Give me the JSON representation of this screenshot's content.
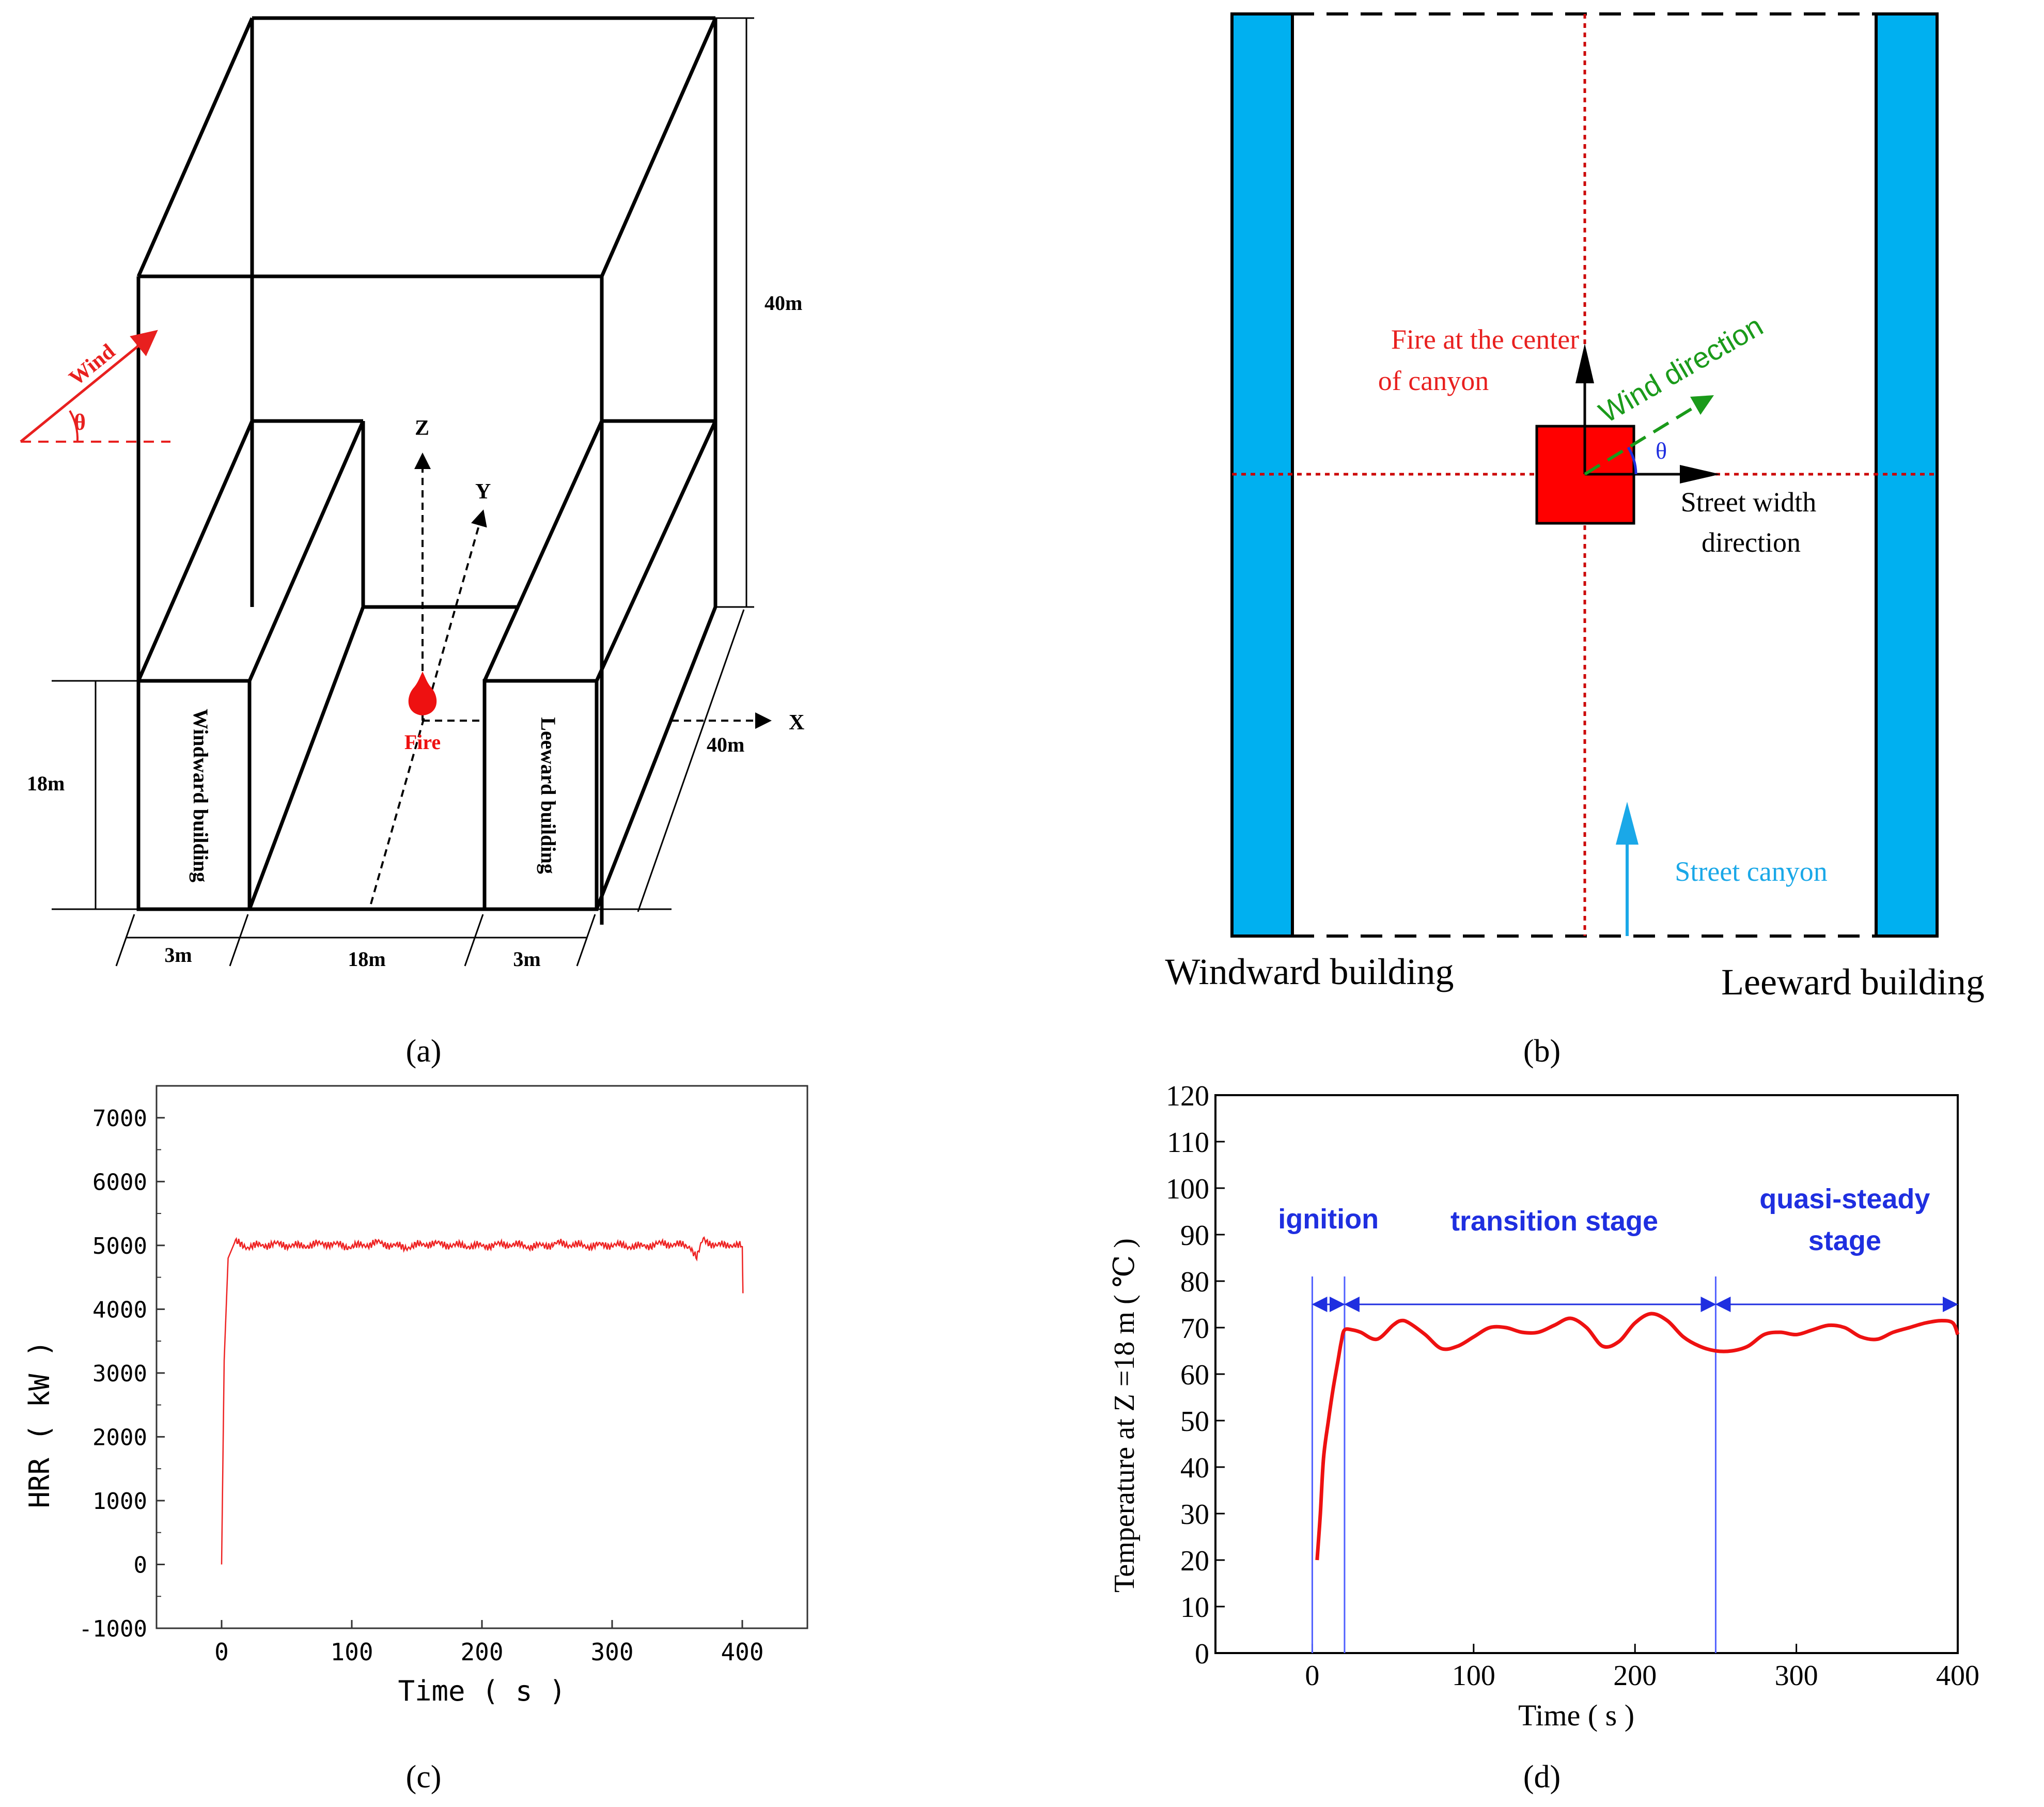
{
  "panel_a": {
    "label": "(a)",
    "wind_label": "Wind",
    "theta": "θ",
    "axis_z": "Z",
    "axis_y": "Y",
    "axis_x": "X",
    "fire_label": "Fire",
    "windward_label": "Windward building",
    "leeward_label": "Leeward building",
    "dim_height_domain": "40m",
    "dim_depth": "40m",
    "dim_building_height": "18m",
    "dim_left_width": "3m",
    "dim_street_width": "18m",
    "dim_right_width": "3m",
    "colors": {
      "wind": "#e8201f",
      "fire": "#ee1111"
    }
  },
  "panel_b": {
    "label": "(b)",
    "fire_text_line1": "Fire at the center",
    "fire_text_line2": "of canyon",
    "wind_direction": "Wind direction",
    "theta": "θ",
    "street_width_line1": "Street width",
    "street_width_line2": "direction",
    "street_canyon": "Street canyon",
    "windward_building": "Windward building",
    "leeward_building": "Leeward building",
    "colors": {
      "building": "#00b0f0",
      "fire": "#ff0000",
      "wind": "#1a9a1a",
      "canyon_arrow": "#1aa8e8",
      "center_lines": "#cc0000"
    }
  },
  "panel_c": {
    "label": "(c)",
    "xlabel": "Time ( s )",
    "ylabel": "HRR ( kW )",
    "xticks": [
      "0",
      "100",
      "200",
      "300",
      "400"
    ],
    "yticks": [
      "-1000",
      "0",
      "1000",
      "2000",
      "3000",
      "4000",
      "5000",
      "6000",
      "7000"
    ],
    "color": "#ee2222"
  },
  "panel_d": {
    "label": "(d)",
    "xlabel": "Time ( s )",
    "ylabel": "Temperature at Z =18 m ( ℃ )",
    "xticks": [
      "0",
      "100",
      "200",
      "300",
      "400"
    ],
    "yticks": [
      "0",
      "10",
      "20",
      "30",
      "40",
      "50",
      "60",
      "70",
      "80",
      "90",
      "100",
      "110",
      "120"
    ],
    "stage_ignition": "ignition",
    "stage_transition": "transition stage",
    "stage_quasi_line1": "quasi-steady",
    "stage_quasi_line2": "stage",
    "color": "#ee1111",
    "stage_color": "#1f2fe0"
  },
  "chart_data": [
    {
      "type": "line",
      "title": "",
      "xlabel": "Time ( s )",
      "ylabel": "HRR ( kW )",
      "xlim": [
        -50,
        450
      ],
      "ylim": [
        -1000,
        7500
      ],
      "series": [
        {
          "name": "HRR",
          "x": [
            0,
            2,
            5,
            10,
            20,
            40,
            60,
            80,
            100,
            120,
            140,
            160,
            180,
            200,
            220,
            240,
            260,
            280,
            300,
            320,
            340,
            360,
            365,
            370,
            380,
            390,
            400,
            400.5
          ],
          "values": [
            0,
            3200,
            4800,
            5050,
            4980,
            5020,
            4990,
            5030,
            4980,
            5040,
            4970,
            5030,
            5000,
            4990,
            5020,
            4980,
            5030,
            4990,
            5010,
            4980,
            5030,
            4990,
            4800,
            5100,
            4990,
            5020,
            4980,
            4250
          ]
        }
      ]
    },
    {
      "type": "line",
      "title": "",
      "xlabel": "Time ( s )",
      "ylabel": "Temperature at Z =18 m ( ℃ )",
      "xlim": [
        -60,
        400
      ],
      "ylim": [
        0,
        120
      ],
      "stages": [
        {
          "name": "ignition",
          "start": 0,
          "end": 20
        },
        {
          "name": "transition stage",
          "start": 20,
          "end": 250
        },
        {
          "name": "quasi-steady stage",
          "start": 250,
          "end": 400
        }
      ],
      "series": [
        {
          "name": "Temperature",
          "x": [
            3,
            5,
            7,
            10,
            13,
            16,
            18,
            20,
            25,
            30,
            40,
            50,
            55,
            60,
            70,
            80,
            90,
            100,
            110,
            120,
            130,
            140,
            150,
            160,
            170,
            180,
            190,
            200,
            210,
            220,
            230,
            240,
            250,
            260,
            270,
            280,
            290,
            300,
            310,
            320,
            330,
            340,
            350,
            360,
            370,
            380,
            390,
            397,
            400
          ],
          "values": [
            20,
            30,
            42,
            50,
            57,
            63,
            67,
            69.5,
            69.5,
            69,
            67.5,
            70.5,
            71.5,
            71,
            68.5,
            65.5,
            66,
            68,
            70,
            70,
            69,
            69,
            70.5,
            72,
            70,
            66,
            67,
            71,
            73,
            71.5,
            68,
            66,
            65,
            65,
            66,
            68.5,
            69,
            68.5,
            69.5,
            70.5,
            70,
            68,
            67.5,
            69,
            70,
            71,
            71.5,
            71,
            68.5
          ]
        }
      ]
    }
  ]
}
